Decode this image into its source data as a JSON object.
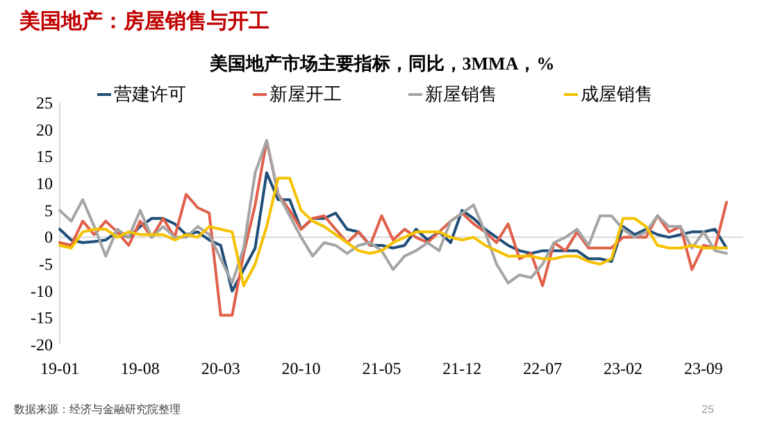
{
  "chart_data": {
    "type": "line",
    "title": "美国地产：房屋销售与开工",
    "subtitle": "美国地产市场主要指标，同比，3MMA，%",
    "annotations": [
      "数据来源：经济与金融研究院整理",
      "25"
    ],
    "categories": [
      "19-01",
      null,
      null,
      null,
      null,
      null,
      null,
      "19-08",
      null,
      null,
      null,
      null,
      null,
      null,
      "20-03",
      null,
      null,
      null,
      null,
      null,
      null,
      "20-10",
      null,
      null,
      null,
      null,
      null,
      null,
      "21-05",
      null,
      null,
      null,
      null,
      null,
      null,
      "21-12",
      null,
      null,
      null,
      null,
      null,
      null,
      "22-07",
      null,
      null,
      null,
      null,
      null,
      null,
      "23-02",
      null,
      null,
      null,
      null,
      null,
      null,
      "23-09",
      null,
      null
    ],
    "series": [
      {
        "name": "营建许可",
        "color": "#1f4e79",
        "values": [
          1.5,
          -0.5,
          -1,
          -0.8,
          -0.5,
          1,
          0,
          2,
          3.5,
          3.5,
          2.5,
          0.5,
          1,
          -0.5,
          -1.5,
          -10,
          -6,
          -2,
          12,
          7,
          7,
          1.5,
          3.5,
          3.5,
          4.5,
          1.5,
          1,
          -1.5,
          -1.5,
          -2,
          -1.5,
          1.5,
          -0.5,
          1,
          -1,
          5,
          3.5,
          1.5,
          0,
          -1.5,
          -2.5,
          -3,
          -2.5,
          -2.5,
          -2.5,
          -2.5,
          -4,
          -4,
          -4.5,
          2,
          0.5,
          1.5,
          0.5,
          0,
          0.5,
          1,
          1,
          1.5,
          -2
        ]
      },
      {
        "name": "新屋开工",
        "color": "#e0604a",
        "values": [
          -1,
          -1.5,
          3,
          0.5,
          3,
          1,
          -1.5,
          3,
          0,
          3.5,
          0,
          8,
          5.5,
          4.5,
          -14.5,
          -14.5,
          -3,
          6,
          18,
          8,
          5,
          1.5,
          3.5,
          4,
          1.5,
          -1,
          1,
          -1.5,
          4,
          -0.5,
          1.5,
          0,
          -1,
          1,
          3,
          4.5,
          2.5,
          1,
          -1,
          2.5,
          -4,
          -3,
          -9,
          -1,
          -2.5,
          1,
          -2,
          -2,
          -2,
          0,
          0,
          0,
          4,
          1,
          2,
          -6,
          -1.5,
          -2,
          6.5
        ]
      },
      {
        "name": "新屋销售",
        "color": "#a5a5a5",
        "values": [
          5,
          3,
          7,
          2,
          -3.5,
          1.5,
          0,
          5,
          0,
          2,
          0,
          0,
          2,
          0.5,
          -4,
          -8.5,
          -2,
          12,
          18,
          8,
          4,
          0,
          -3.5,
          -1,
          -1.5,
          -3,
          -1.5,
          -1,
          -2.5,
          -6,
          -3.5,
          -2.5,
          -1,
          -2.5,
          3,
          4.5,
          6,
          1,
          -5,
          -8.5,
          -7,
          -7.5,
          -5,
          -1,
          0,
          1.5,
          -1.5,
          4,
          4,
          1.5,
          0,
          1,
          4,
          2,
          2,
          -2,
          1,
          -2.5,
          -3
        ]
      },
      {
        "name": "成屋销售",
        "color": "#f5c200",
        "values": [
          -1.5,
          -2,
          1,
          1.5,
          1.5,
          0,
          1,
          0.5,
          0.5,
          0.5,
          -0.5,
          0.5,
          0,
          2,
          1.5,
          1,
          -9,
          -5,
          2,
          11,
          11,
          5,
          3,
          2,
          0.5,
          -1,
          -2.5,
          -3,
          -2.5,
          -1,
          0,
          1,
          1,
          1,
          0,
          -0.5,
          0,
          -1.5,
          -2.5,
          -3.5,
          -3.5,
          -3.5,
          -4,
          -4,
          -3.5,
          -3.5,
          -4.5,
          -5,
          -4,
          3.5,
          3.5,
          2,
          -1.5,
          -2,
          -2,
          -1.5,
          -2,
          -2,
          -2
        ]
      }
    ],
    "ylim": [
      -20,
      25
    ],
    "yticks": [
      -20,
      -15,
      -10,
      -5,
      0,
      5,
      10,
      15,
      20,
      25
    ],
    "legend": "top"
  }
}
